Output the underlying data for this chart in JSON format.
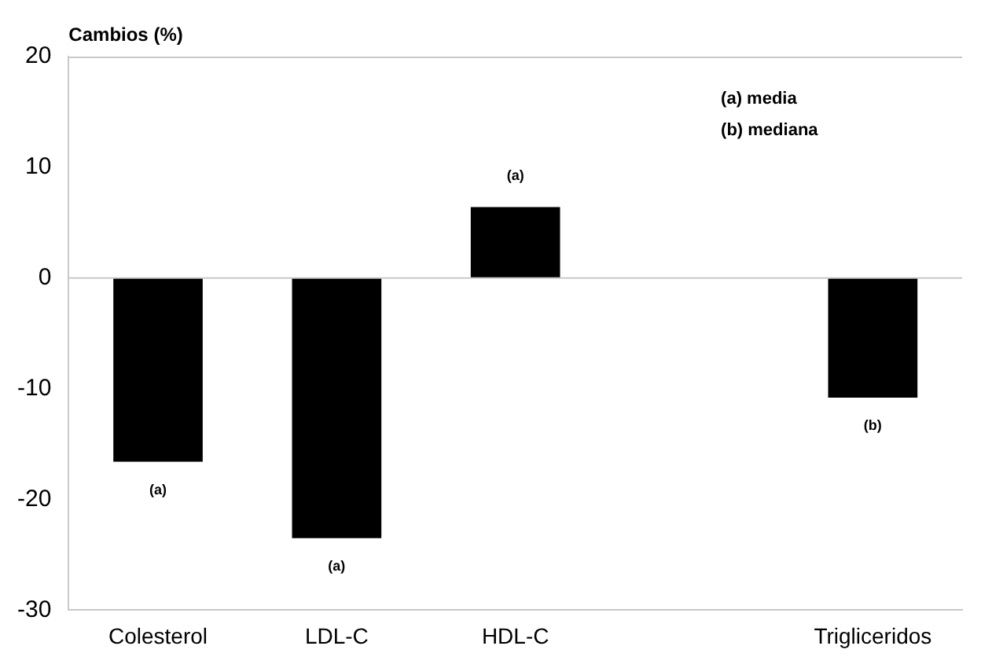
{
  "chart_data": {
    "type": "bar",
    "ylabel": "Cambios (%)",
    "categories": [
      "Colesterol",
      "LDL-C",
      "HDL-C",
      null,
      "Trigliceridos"
    ],
    "values": [
      -16.6,
      -23.5,
      6.4,
      null,
      -10.8
    ],
    "color": "#000000",
    "ylim": [
      -30,
      20
    ],
    "yticks": [
      -30,
      -20,
      -10,
      0,
      10,
      20
    ],
    "grid": false,
    "ref_lines": [
      {
        "axis": "y",
        "value": 0,
        "color": "#c8c8c8"
      }
    ],
    "annotations": [
      {
        "text": "(a)",
        "x": "Colesterol",
        "y": -16.6
      },
      {
        "text": "(a)",
        "x": "LDL-C",
        "y": -23.5
      },
      {
        "text": "(a)",
        "x": "HDL-C",
        "y": 6.4
      },
      {
        "text": "(b)",
        "x": "Trigliceridos",
        "y": -10.8
      },
      "(a) media",
      "(b) mediana"
    ]
  }
}
